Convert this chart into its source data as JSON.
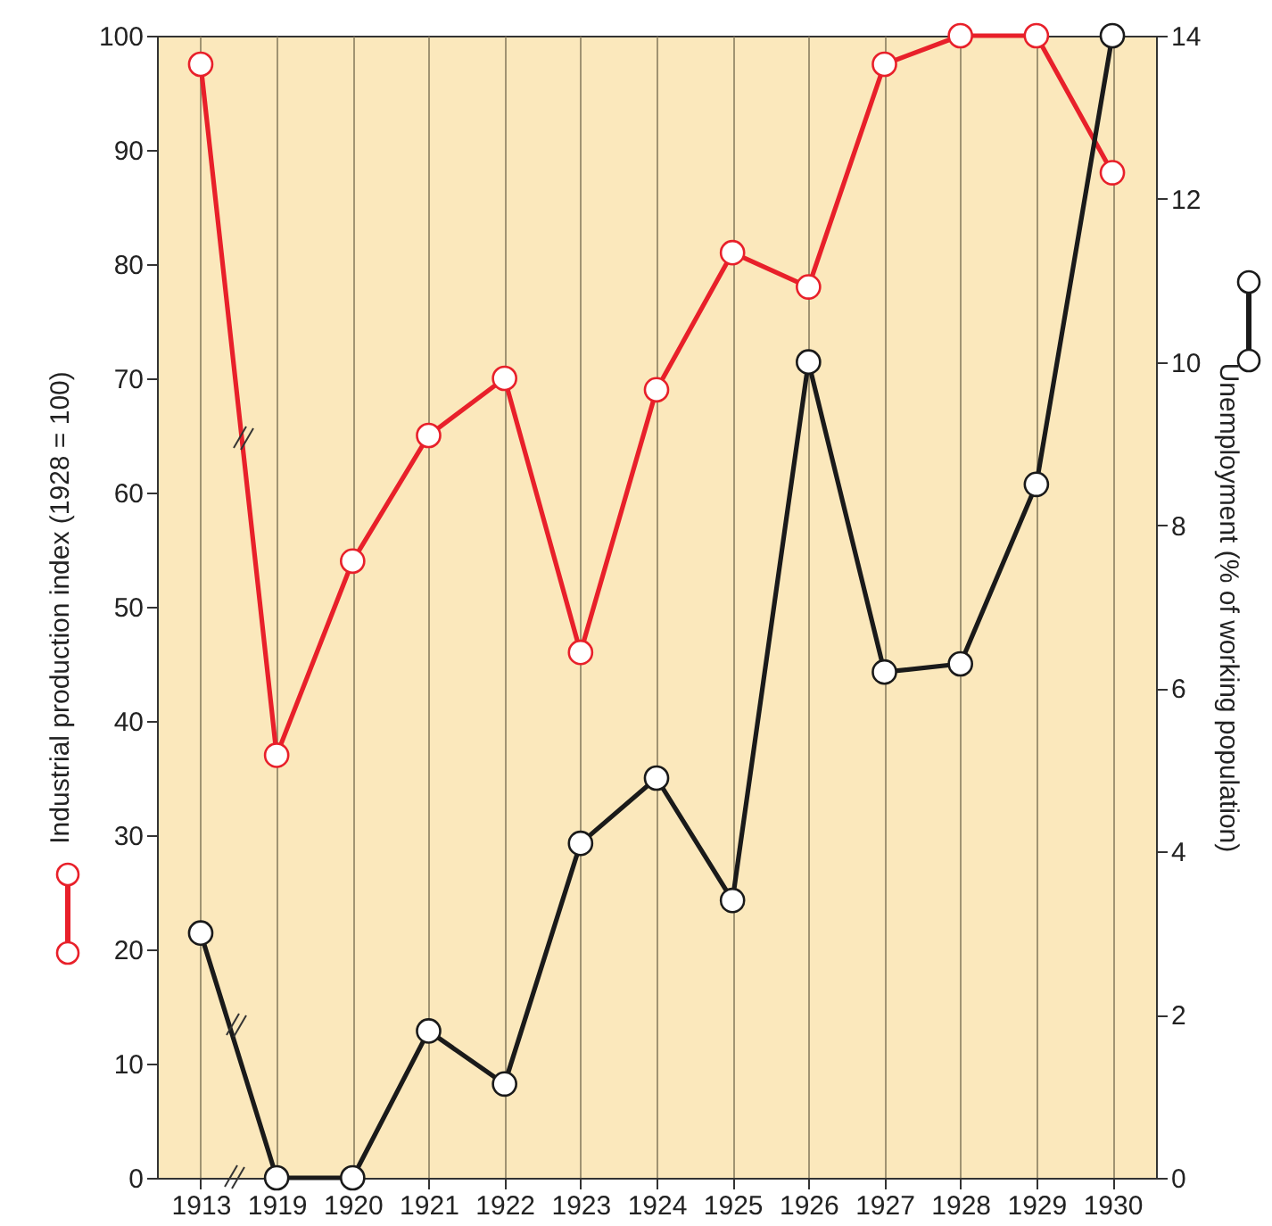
{
  "chart_data": {
    "type": "line",
    "ylabel": "Industrial production index (1928 = 100)",
    "y2label": "Unemployment (% of working population)",
    "categories": [
      "1913",
      "1919",
      "1920",
      "1921",
      "1922",
      "1923",
      "1924",
      "1925",
      "1926",
      "1927",
      "1928",
      "1929",
      "1930"
    ],
    "series": [
      {
        "color": "#e8202a",
        "values": [
          97.5,
          37,
          54,
          65,
          70,
          46,
          69,
          81,
          78,
          97.5,
          100,
          100,
          88
        ]
      },
      {
        "color": "#1a1a1a",
        "axis": "y2",
        "values": [
          3.0,
          0,
          0,
          1.8,
          1.15,
          4.1,
          4.9,
          3.4,
          10.0,
          6.2,
          6.3,
          8.5,
          14
        ]
      }
    ],
    "ylim": [
      0,
      100
    ],
    "yticks": [
      0,
      10,
      20,
      30,
      40,
      50,
      60,
      70,
      80,
      90,
      100
    ],
    "y2lim": [
      0,
      14
    ],
    "y2ticks": [
      0,
      2,
      4,
      6,
      8,
      10,
      12,
      14
    ],
    "grid": "x",
    "marker": "circle",
    "line_style": "solid"
  }
}
